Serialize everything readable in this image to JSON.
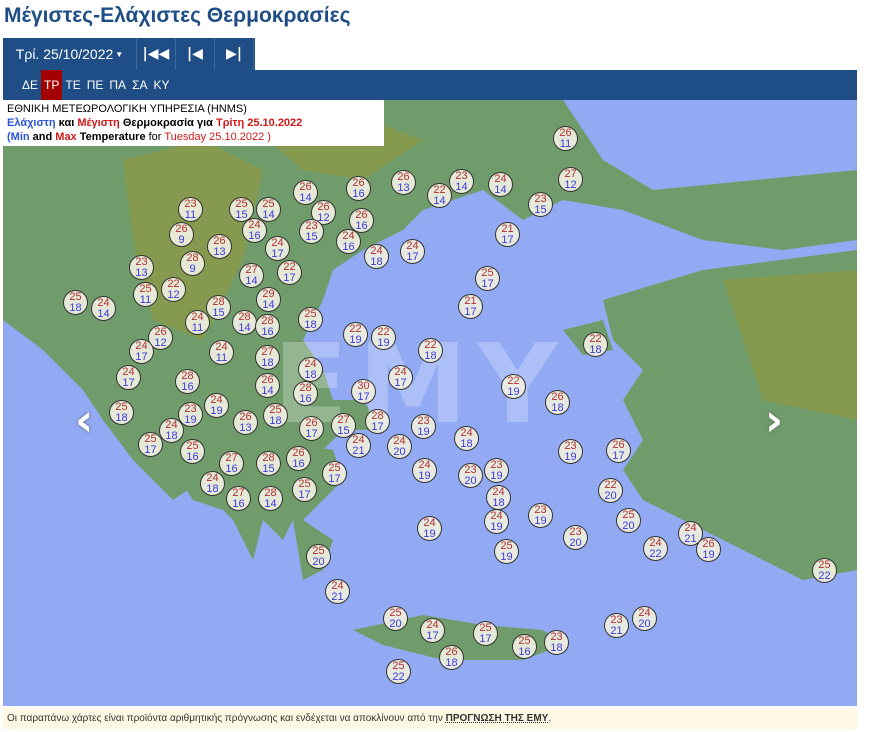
{
  "title": "Μέγιστες-Ελάχιστες Θερμοκρασίες",
  "toolbar": {
    "date": "Τρί. 25/10/2022",
    "first_icon": "skip-first-icon",
    "prev_icon": "step-back-icon",
    "next_icon": "step-forward-icon"
  },
  "days": [
    {
      "label": "ΔΕ"
    },
    {
      "label": "ΤΡ",
      "active": true
    },
    {
      "label": "ΤΕ"
    },
    {
      "label": "ΠΕ"
    },
    {
      "label": "ΠΑ"
    },
    {
      "label": "ΣΑ"
    },
    {
      "label": "ΚΥ"
    }
  ],
  "legend": {
    "line1": "ΕΘΝΙΚΗ ΜΕΤΕΩΡΟΛΟΓΙΚΗ ΥΠΗΡΕΣΙΑ (HNMS)",
    "min_gr": "Ελάχιστη",
    "and_gr": " και ",
    "max_gr": "Μέγιστη",
    "temp_gr": " Θερμοκρασία για ",
    "date_gr": "Τρίτη 25.10.2022",
    "min_en": "(Min",
    "and_en": " and ",
    "max_en": "Max",
    "temp_en": " Temperature",
    "for_en": " for ",
    "date_en": "Tuesday 25.10.2022 )"
  },
  "watermark": "ΕΜΥ",
  "colors": {
    "max": "#b03030",
    "min": "#3a3ae0",
    "header": "#1f4e86",
    "active_day": "#a30000",
    "sea": "#91aaf3",
    "land": "#6f9c6a"
  },
  "markers": [
    {
      "max": 26,
      "min": 11
    },
    {
      "max": 27,
      "min": 12
    },
    {
      "max": 23,
      "min": 15
    },
    {
      "max": 24,
      "min": 14
    },
    {
      "max": 23,
      "min": 14
    },
    {
      "max": 22,
      "min": 14
    },
    {
      "max": 26,
      "min": 13
    },
    {
      "max": 26,
      "min": 16
    },
    {
      "max": 26,
      "min": 14
    },
    {
      "max": 26,
      "min": 12
    },
    {
      "max": 26,
      "min": 16
    },
    {
      "max": 23,
      "min": 15
    },
    {
      "max": 24,
      "min": 16
    },
    {
      "max": 24,
      "min": 18
    },
    {
      "max": 24,
      "min": 17
    },
    {
      "max": 21,
      "min": 17
    },
    {
      "max": 25,
      "min": 17
    },
    {
      "max": 21,
      "min": 17
    },
    {
      "max": 23,
      "min": 11
    },
    {
      "max": 25,
      "min": 15
    },
    {
      "max": 25,
      "min": 14
    },
    {
      "max": 24,
      "min": 16
    },
    {
      "max": 26,
      "min": 9
    },
    {
      "max": 26,
      "min": 13
    },
    {
      "max": 24,
      "min": 17
    },
    {
      "max": 28,
      "min": 9
    },
    {
      "max": 23,
      "min": 13
    },
    {
      "max": 27,
      "min": 14
    },
    {
      "max": 22,
      "min": 17
    },
    {
      "max": 25,
      "min": 11
    },
    {
      "max": 22,
      "min": 12
    },
    {
      "max": 25,
      "min": 18
    },
    {
      "max": 24,
      "min": 14
    },
    {
      "max": 29,
      "min": 14
    },
    {
      "max": 28,
      "min": 15
    },
    {
      "max": 24,
      "min": 11
    },
    {
      "max": 28,
      "min": 14
    },
    {
      "max": 28,
      "min": 16
    },
    {
      "max": 25,
      "min": 18
    },
    {
      "max": 26,
      "min": 12
    },
    {
      "max": 24,
      "min": 17
    },
    {
      "max": 24,
      "min": 11
    },
    {
      "max": 27,
      "min": 18
    },
    {
      "max": 22,
      "min": 19
    },
    {
      "max": 22,
      "min": 19
    },
    {
      "max": 22,
      "min": 18
    },
    {
      "max": 22,
      "min": 18
    },
    {
      "max": 24,
      "min": 17
    },
    {
      "max": 28,
      "min": 16
    },
    {
      "max": 26,
      "min": 14
    },
    {
      "max": 24,
      "min": 18
    },
    {
      "max": 28,
      "min": 16
    },
    {
      "max": 30,
      "min": 17
    },
    {
      "max": 24,
      "min": 17
    },
    {
      "max": 22,
      "min": 19
    },
    {
      "max": 26,
      "min": 18
    },
    {
      "max": 25,
      "min": 18
    },
    {
      "max": 23,
      "min": 19
    },
    {
      "max": 24,
      "min": 19
    },
    {
      "max": 26,
      "min": 13
    },
    {
      "max": 25,
      "min": 18
    },
    {
      "max": 24,
      "min": 18
    },
    {
      "max": 25,
      "min": 17
    },
    {
      "max": 25,
      "min": 16
    },
    {
      "max": 26,
      "min": 17
    },
    {
      "max": 27,
      "min": 15
    },
    {
      "max": 28,
      "min": 17
    },
    {
      "max": 24,
      "min": 21
    },
    {
      "max": 23,
      "min": 19
    },
    {
      "max": 24,
      "min": 20
    },
    {
      "max": 24,
      "min": 18
    },
    {
      "max": 23,
      "min": 19
    },
    {
      "max": 26,
      "min": 17
    },
    {
      "max": 27,
      "min": 16
    },
    {
      "max": 28,
      "min": 15
    },
    {
      "max": 26,
      "min": 16
    },
    {
      "max": 25,
      "min": 17
    },
    {
      "max": 24,
      "min": 18
    },
    {
      "max": 24,
      "min": 19
    },
    {
      "max": 23,
      "min": 20
    },
    {
      "max": 23,
      "min": 19
    },
    {
      "max": 24,
      "min": 18
    },
    {
      "max": 24,
      "min": 19
    },
    {
      "max": 27,
      "min": 16
    },
    {
      "max": 28,
      "min": 14
    },
    {
      "max": 25,
      "min": 17
    },
    {
      "max": 22,
      "min": 20
    },
    {
      "max": 23,
      "min": 19
    },
    {
      "max": 24,
      "min": 19
    },
    {
      "max": 25,
      "min": 20
    },
    {
      "max": 23,
      "min": 20
    },
    {
      "max": 25,
      "min": 19
    },
    {
      "max": 24,
      "min": 22
    },
    {
      "max": 24,
      "min": 21
    },
    {
      "max": 26,
      "min": 19
    },
    {
      "max": 25,
      "min": 22
    },
    {
      "max": 25,
      "min": 20
    },
    {
      "max": 24,
      "min": 21
    },
    {
      "max": 25,
      "min": 20
    },
    {
      "max": 24,
      "min": 17
    },
    {
      "max": 25,
      "min": 17
    },
    {
      "max": 26,
      "min": 18
    },
    {
      "max": 25,
      "min": 16
    },
    {
      "max": 23,
      "min": 18
    },
    {
      "max": 23,
      "min": 21
    },
    {
      "max": 24,
      "min": 20
    },
    {
      "max": 25,
      "min": 22
    }
  ],
  "nav": {
    "prev_icon": "chevron-left-icon",
    "next_icon": "chevron-right-icon"
  },
  "footer": {
    "text": "Οι παραπάνω χάρτες είναι προϊόντα αριθμητικής πρόγνωσης και ενδέχεται να αποκλίνουν από την ",
    "link": "ΠΡΟΓΝΩΣΗ ΤΗΣ ΕΜΥ",
    "end": "."
  }
}
